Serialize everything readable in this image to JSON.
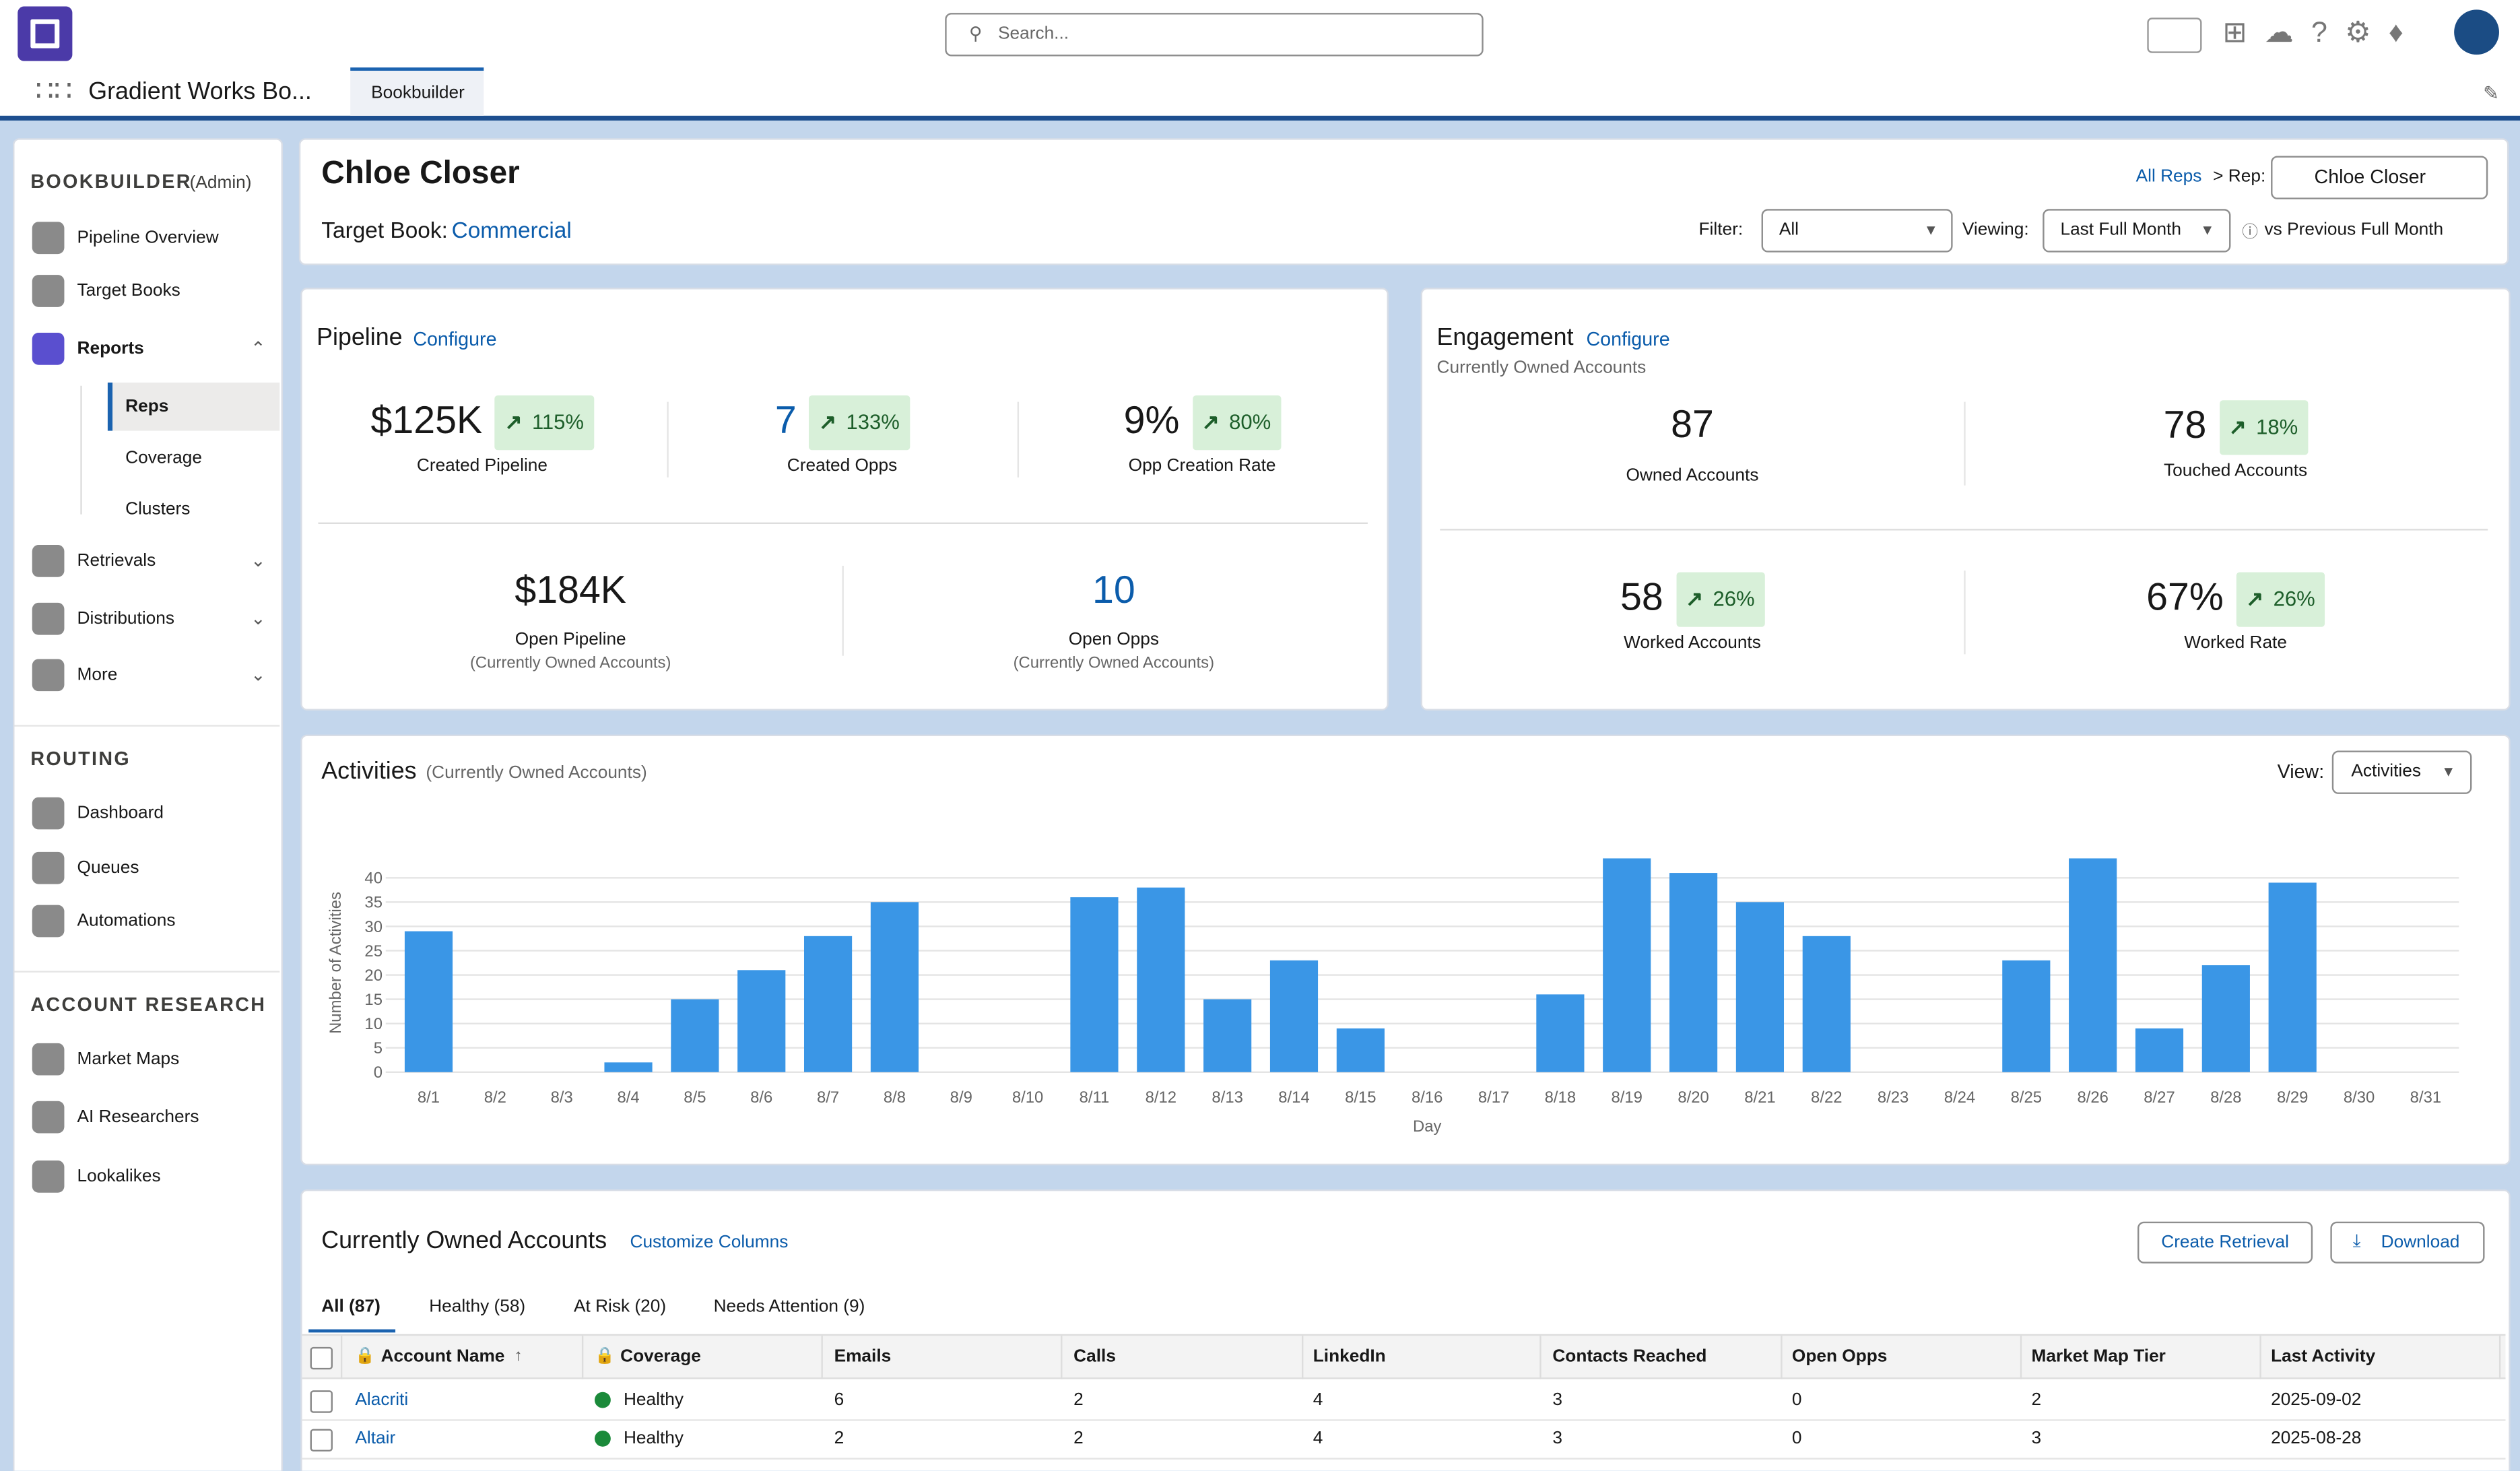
{
  "app": {
    "name": "Gradient Works Bo...",
    "tab": "Bookbuilder",
    "search_placeholder": "Search..."
  },
  "sidebar": {
    "sections": [
      {
        "title": "BOOKBUILDER",
        "note": "(Admin)",
        "items": [
          {
            "label": "Pipeline Overview"
          },
          {
            "label": "Target Books"
          },
          {
            "label": "Reports",
            "children": [
              "Reps",
              "Coverage",
              "Clusters"
            ]
          },
          {
            "label": "Retrievals"
          },
          {
            "label": "Distributions"
          },
          {
            "label": "More"
          }
        ]
      },
      {
        "title": "ROUTING",
        "items": [
          {
            "label": "Dashboard"
          },
          {
            "label": "Queues"
          },
          {
            "label": "Automations"
          }
        ]
      },
      {
        "title": "ACCOUNT RESEARCH",
        "items": [
          {
            "label": "Market Maps"
          },
          {
            "label": "AI Researchers"
          },
          {
            "label": "Lookalikes"
          }
        ]
      }
    ]
  },
  "header": {
    "rep": "Chloe Closer",
    "target_book_label": "Target Book:",
    "target_book": "Commercial",
    "all_reps": "All Reps",
    "rep_label": "> Rep:",
    "rep_value": "Chloe Closer",
    "filter_label": "Filter:",
    "filter_value": "All",
    "viewing_label": "Viewing:",
    "viewing_value": "Last Full Month",
    "compare": "vs Previous Full Month"
  },
  "pipeline": {
    "title": "Pipeline",
    "configure": "Configure",
    "metrics": [
      {
        "value": "$125K",
        "change": "115%",
        "label": "Created Pipeline"
      },
      {
        "value": "7",
        "change": "133%",
        "label": "Created Opps"
      },
      {
        "value": "9%",
        "change": "80%",
        "label": "Opp Creation Rate"
      },
      {
        "value": "$184K",
        "label": "Open Pipeline",
        "note": "(Currently Owned Accounts)"
      },
      {
        "value": "10",
        "label": "Open Opps",
        "note": "(Currently Owned Accounts)"
      }
    ]
  },
  "engagement": {
    "title": "Engagement",
    "configure": "Configure",
    "subtitle": "Currently Owned Accounts",
    "metrics": [
      {
        "value": "87",
        "label": "Owned Accounts"
      },
      {
        "value": "78",
        "change": "18%",
        "label": "Touched Accounts"
      },
      {
        "value": "58",
        "change": "26%",
        "label": "Worked Accounts"
      },
      {
        "value": "67%",
        "change": "26%",
        "label": "Worked Rate"
      }
    ]
  },
  "activities": {
    "title": "Activities",
    "note": "(Currently Owned Accounts)",
    "view_label": "View:",
    "view_value": "Activities"
  },
  "chart_data": {
    "type": "bar",
    "xlabel": "Day",
    "ylabel": "Number of Activities",
    "categories": [
      "8/1",
      "8/2",
      "8/3",
      "8/4",
      "8/5",
      "8/6",
      "8/7",
      "8/8",
      "8/9",
      "8/10",
      "8/11",
      "8/12",
      "8/13",
      "8/14",
      "8/15",
      "8/16",
      "8/17",
      "8/18",
      "8/19",
      "8/20",
      "8/21",
      "8/22",
      "8/23",
      "8/24",
      "8/25",
      "8/26",
      "8/27",
      "8/28",
      "8/29",
      "8/30",
      "8/31"
    ],
    "values": [
      29,
      0,
      0,
      2,
      15,
      21,
      28,
      35,
      0,
      0,
      36,
      38,
      15,
      23,
      9,
      0,
      0,
      16,
      44,
      41,
      35,
      28,
      0,
      0,
      23,
      44,
      9,
      22,
      39,
      0,
      0
    ],
    "color": "#3a96e6",
    "ylim": [
      0,
      45
    ],
    "yticks": [
      0,
      5,
      10,
      15,
      20,
      25,
      30,
      35,
      40
    ],
    "grid": true
  },
  "accounts": {
    "title": "Currently Owned Accounts",
    "customize": "Customize Columns",
    "buttons": [
      "Create Retrieval",
      "Download"
    ],
    "tabs": [
      "All (87)",
      "Healthy (58)",
      "At Risk (20)",
      "Needs Attention (9)"
    ],
    "columns": [
      "Account Name",
      "Coverage",
      "Emails",
      "Calls",
      "LinkedIn",
      "Contacts Reached",
      "Open Opps",
      "Market Map Tier",
      "Last Activity"
    ],
    "rows": [
      [
        "Alacriti",
        "Healthy",
        "6",
        "2",
        "4",
        "3",
        "0",
        "2",
        "2025-09-02"
      ],
      [
        "Altair",
        "Healthy",
        "2",
        "2",
        "4",
        "3",
        "0",
        "3",
        "2025-08-28"
      ]
    ]
  }
}
